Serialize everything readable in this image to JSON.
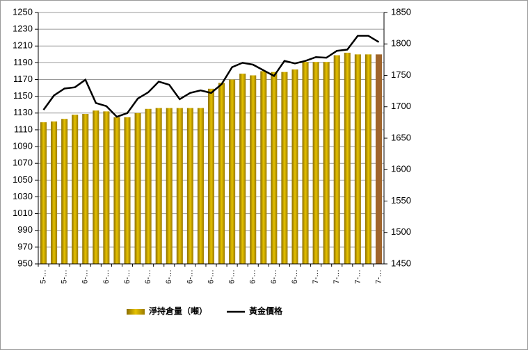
{
  "chart_data": {
    "type": "bar-line",
    "categories": [
      "5-…",
      null,
      "5-…",
      null,
      "6-…",
      null,
      "6-…",
      null,
      "6-…",
      null,
      "6-…",
      null,
      "6-…",
      null,
      "6-…",
      null,
      "6-…",
      null,
      "6-…",
      null,
      "6-…",
      null,
      "6-…",
      null,
      "6-…",
      null,
      "7-…",
      null,
      "7-…",
      null,
      "7-…",
      null,
      "7-…"
    ],
    "series": [
      {
        "name": "淨持倉量（噸）",
        "type": "bar",
        "color": "#c9a100",
        "highlight": {
          "index": 32,
          "color": "#a0652c"
        },
        "values": [
          1119,
          1120,
          1123,
          1128,
          1129,
          1133,
          1132,
          1125,
          1125,
          1130,
          1135,
          1136,
          1136,
          1136,
          1136,
          1136,
          1159,
          1166,
          1170,
          1177,
          1175,
          1180,
          1179,
          1179,
          1182,
          1191,
          1191,
          1191,
          1199,
          1202,
          1200,
          1200,
          1200
        ]
      },
      {
        "name": "黃金價格",
        "type": "line",
        "axis": "y2",
        "color": "#000000",
        "values": [
          1695,
          1718,
          1729,
          1731,
          1743,
          1706,
          1701,
          1684,
          1690,
          1713,
          1723,
          1740,
          1735,
          1712,
          1722,
          1726,
          1722,
          1736,
          1763,
          1770,
          1767,
          1758,
          1749,
          1773,
          1769,
          1773,
          1779,
          1778,
          1789,
          1791,
          1813,
          1813,
          1803
        ]
      }
    ],
    "ylim": [
      950,
      1250
    ],
    "yticks": [
      950,
      970,
      990,
      1010,
      1030,
      1050,
      1070,
      1090,
      1110,
      1130,
      1150,
      1170,
      1190,
      1210,
      1230,
      1250
    ],
    "y2lim": [
      1450,
      1850
    ],
    "y2ticks": [
      1450,
      1500,
      1550,
      1600,
      1650,
      1700,
      1750,
      1800,
      1850
    ],
    "grid": true,
    "legend": "bottom"
  }
}
